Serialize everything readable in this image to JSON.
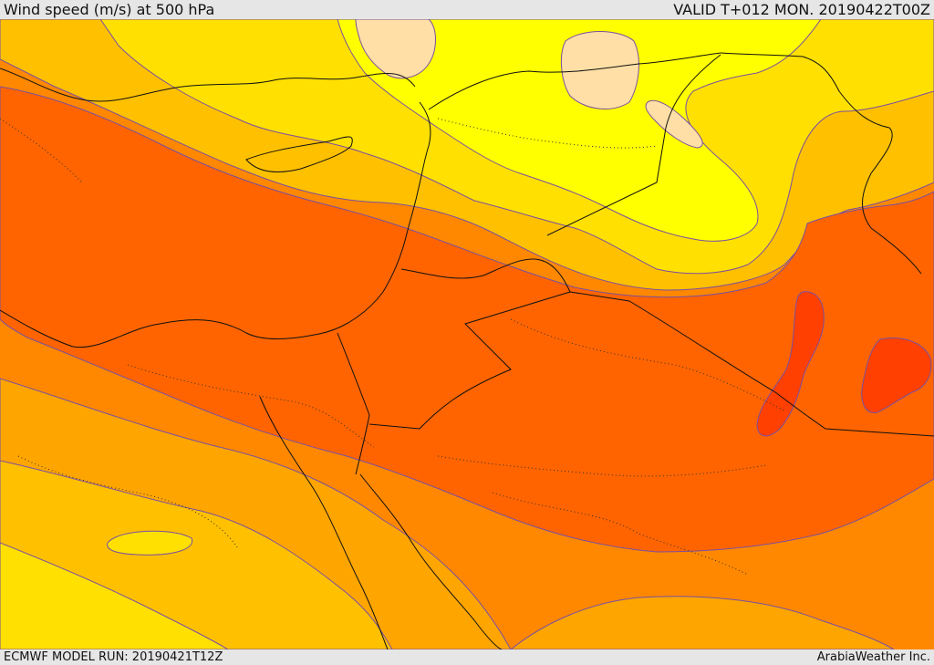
{
  "header": {
    "title": "Wind speed (m/s) at 500 hPa",
    "valid": "VALID T+012 MON. 20190422T00Z"
  },
  "footer": {
    "model_run": "ECMWF MODEL RUN: 20190421T12Z",
    "credit": "ArabiaWeather Inc."
  },
  "colors": {
    "bg_pale": "#ffdfa5",
    "yellow_light": "#ffff00",
    "yellow": "#ffe000",
    "yellow_orange": "#ffc000",
    "orange_light": "#ffa500",
    "orange": "#ff8800",
    "orange_dark": "#ff6400",
    "red_orange": "#ff4000",
    "contour": "#7a50a0",
    "border": "#111111"
  }
}
